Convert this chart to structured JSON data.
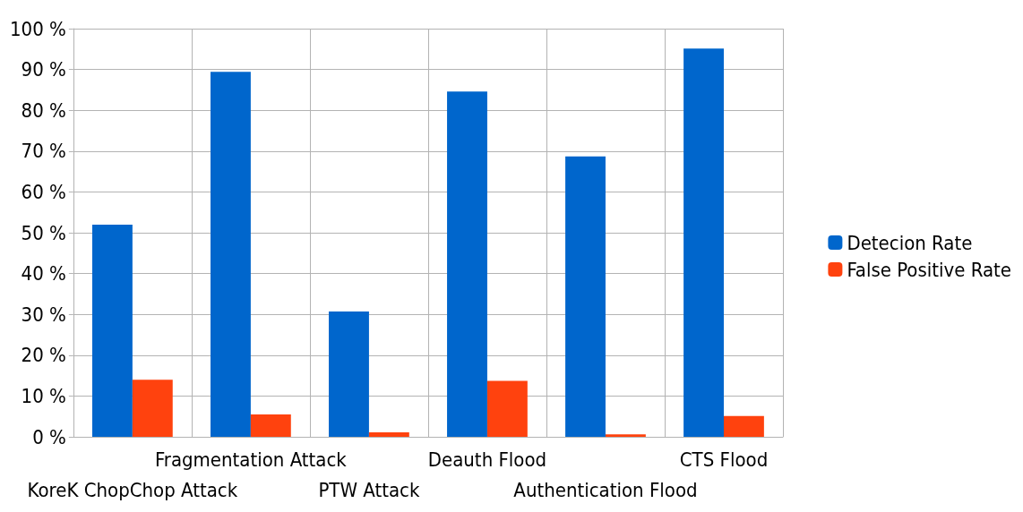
{
  "chart_data": {
    "type": "bar",
    "categories": [
      "KoreK ChopChop Attack",
      "Fragmentation Attack",
      "PTW Attack",
      "Deauth Flood",
      "Authentication Flood",
      "CTS Flood"
    ],
    "series": [
      {
        "name": "Detecion Rate",
        "color": "#0066cc",
        "values": [
          52.0,
          89.4,
          30.7,
          84.6,
          68.7,
          95.1
        ]
      },
      {
        "name": "False Positive Rate",
        "color": "#ff420e",
        "values": [
          14.0,
          5.5,
          1.1,
          13.7,
          0.6,
          5.1
        ]
      }
    ],
    "ylim": [
      0,
      100
    ],
    "yticks": [
      {
        "value": 0,
        "label": "0 %"
      },
      {
        "value": 10,
        "label": "10 %"
      },
      {
        "value": 20,
        "label": "20 %"
      },
      {
        "value": 30,
        "label": "30 %"
      },
      {
        "value": 40,
        "label": "40 %"
      },
      {
        "value": 50,
        "label": "50 %"
      },
      {
        "value": 60,
        "label": "60 %"
      },
      {
        "value": 70,
        "label": "70 %"
      },
      {
        "value": 80,
        "label": "80 %"
      },
      {
        "value": 90,
        "label": "90 %"
      },
      {
        "value": 100,
        "label": "100 %"
      }
    ],
    "grid": true,
    "legend": "right"
  }
}
